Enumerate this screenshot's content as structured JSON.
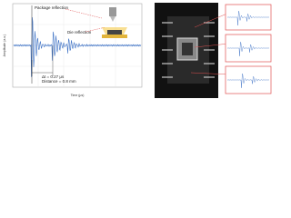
{
  "plot": {
    "y_label": "Amplitude (a.u.)",
    "x_label": "Time (μs)"
  },
  "annotations": {
    "package": "Package reflection",
    "die": "Die reflection",
    "delta_t": "Δt = 0.27 μs",
    "distance": "Distance = 0.8 mm"
  }
}
